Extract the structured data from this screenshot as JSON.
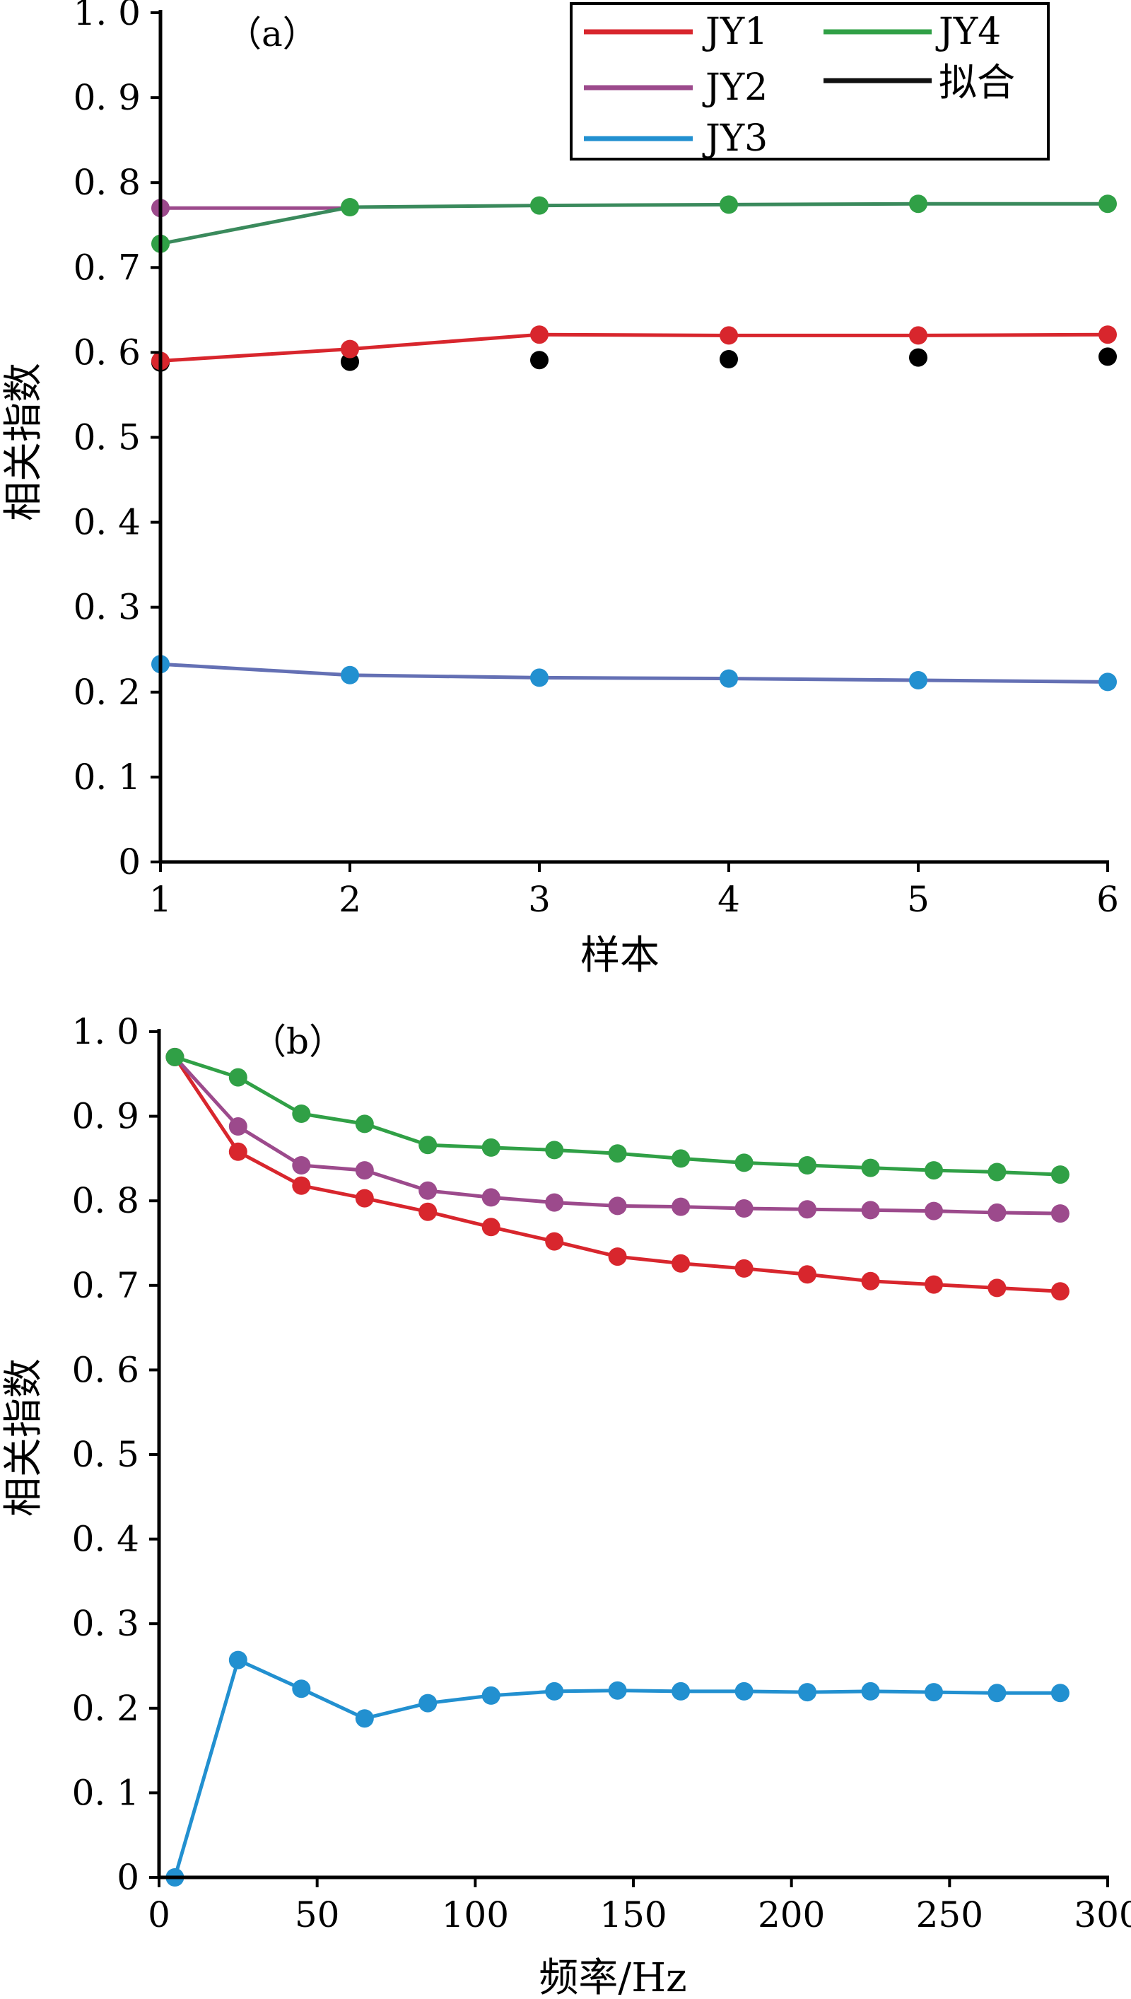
{
  "colors": {
    "JY1": "#d8262d",
    "JY2": "#9c4a8c",
    "JY3": "#2290d0",
    "JY4": "#30a046",
    "fit": "#111111",
    "jy3_line_a": "#6470b4",
    "jy2_4_line_a": "#3a8a5c"
  },
  "chart_data": [
    {
      "type": "line",
      "panel_label": "（a）",
      "xlabel": "样本",
      "ylabel": "相关指数",
      "xlim": [
        1,
        6
      ],
      "ylim": [
        0,
        1.0
      ],
      "x_ticks": [
        "1",
        "2",
        "3",
        "4",
        "5",
        "6"
      ],
      "y_ticks": [
        "0",
        "0. 1",
        "0. 2",
        "0. 3",
        "0. 4",
        "0. 5",
        "0. 6",
        "0. 7",
        "0. 8",
        "0. 9",
        "1. 0"
      ],
      "legend": {
        "placement": "top-right",
        "entries": [
          "JY1",
          "JY2",
          "JY3",
          "JY4",
          "拟合"
        ]
      },
      "series": [
        {
          "name": "JY1",
          "x": [
            1,
            2,
            3,
            4,
            5,
            6
          ],
          "values": [
            0.59,
            0.604,
            0.621,
            0.62,
            0.62,
            0.621
          ]
        },
        {
          "name": "JY2",
          "x": [
            1,
            2
          ],
          "values": [
            0.77,
            0.77
          ]
        },
        {
          "name": "JY3",
          "x": [
            1,
            2,
            3,
            4,
            5,
            6
          ],
          "values": [
            0.233,
            0.22,
            0.217,
            0.216,
            0.214,
            0.212
          ]
        },
        {
          "name": "JY4",
          "x": [
            1,
            2,
            3,
            4,
            5,
            6
          ],
          "values": [
            0.728,
            0.771,
            0.773,
            0.774,
            0.775,
            0.775
          ]
        },
        {
          "name": "拟合",
          "x": [
            1,
            2,
            3,
            4,
            5,
            6
          ],
          "values": [
            0.588,
            0.589,
            0.591,
            0.592,
            0.594,
            0.595
          ]
        }
      ]
    },
    {
      "type": "line",
      "panel_label": "（b）",
      "xlabel": "频率/Hz",
      "ylabel": "相关指数",
      "xlim": [
        0,
        300
      ],
      "ylim": [
        0,
        1.0
      ],
      "x_ticks": [
        "0",
        "50",
        "100",
        "150",
        "200",
        "250",
        "300"
      ],
      "y_ticks": [
        "0",
        "0. 1",
        "0. 2",
        "0. 3",
        "0. 4",
        "0. 5",
        "0. 6",
        "0. 7",
        "0. 8",
        "0. 9",
        "1. 0"
      ],
      "x": [
        5,
        25,
        45,
        65,
        85,
        105,
        125,
        145,
        165,
        185,
        205,
        225,
        245,
        265,
        285
      ],
      "series": [
        {
          "name": "JY1",
          "values": [
            0.97,
            0.858,
            0.818,
            0.803,
            0.787,
            0.769,
            0.752,
            0.734,
            0.726,
            0.72,
            0.713,
            0.705,
            0.701,
            0.697,
            0.693
          ]
        },
        {
          "name": "JY2",
          "values": [
            0.97,
            0.888,
            0.842,
            0.836,
            0.812,
            0.804,
            0.798,
            0.794,
            0.793,
            0.791,
            0.79,
            0.789,
            0.788,
            0.786,
            0.785
          ]
        },
        {
          "name": "JY3",
          "values": [
            0.0,
            0.257,
            0.223,
            0.188,
            0.206,
            0.215,
            0.22,
            0.221,
            0.22,
            0.22,
            0.219,
            0.22,
            0.219,
            0.218,
            0.218
          ]
        },
        {
          "name": "JY4",
          "values": [
            0.97,
            0.946,
            0.903,
            0.891,
            0.866,
            0.863,
            0.86,
            0.856,
            0.85,
            0.845,
            0.842,
            0.839,
            0.836,
            0.834,
            0.831
          ]
        }
      ]
    }
  ]
}
